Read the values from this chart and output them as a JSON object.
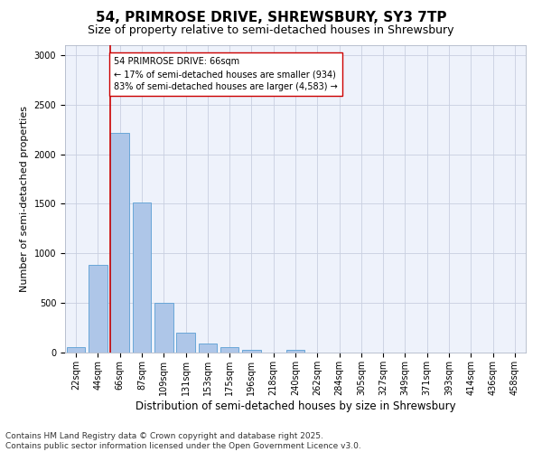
{
  "title1": "54, PRIMROSE DRIVE, SHREWSBURY, SY3 7TP",
  "title2": "Size of property relative to semi-detached houses in Shrewsbury",
  "xlabel": "Distribution of semi-detached houses by size in Shrewsbury",
  "ylabel": "Number of semi-detached properties",
  "categories": [
    "22sqm",
    "44sqm",
    "66sqm",
    "87sqm",
    "109sqm",
    "131sqm",
    "153sqm",
    "175sqm",
    "196sqm",
    "218sqm",
    "240sqm",
    "262sqm",
    "284sqm",
    "305sqm",
    "327sqm",
    "349sqm",
    "371sqm",
    "393sqm",
    "414sqm",
    "436sqm",
    "458sqm"
  ],
  "values": [
    55,
    880,
    2220,
    1510,
    500,
    200,
    90,
    55,
    30,
    0,
    25,
    0,
    0,
    0,
    0,
    0,
    0,
    0,
    0,
    0,
    0
  ],
  "bar_color": "#aec6e8",
  "bar_edge_color": "#5a9fd4",
  "highlight_line_idx": 2,
  "highlight_line_color": "#cc0000",
  "annotation_text": "54 PRIMROSE DRIVE: 66sqm\n← 17% of semi-detached houses are smaller (934)\n83% of semi-detached houses are larger (4,583) →",
  "annotation_box_color": "#ffffff",
  "annotation_box_edge": "#cc0000",
  "ylim": [
    0,
    3100
  ],
  "yticks": [
    0,
    500,
    1000,
    1500,
    2000,
    2500,
    3000
  ],
  "footnote": "Contains HM Land Registry data © Crown copyright and database right 2025.\nContains public sector information licensed under the Open Government Licence v3.0.",
  "bg_color": "#eef2fb",
  "grid_color": "#c8cfe0",
  "title1_fontsize": 11,
  "title2_fontsize": 9,
  "xlabel_fontsize": 8.5,
  "ylabel_fontsize": 8,
  "tick_fontsize": 7,
  "annotation_fontsize": 7,
  "footnote_fontsize": 6.5
}
